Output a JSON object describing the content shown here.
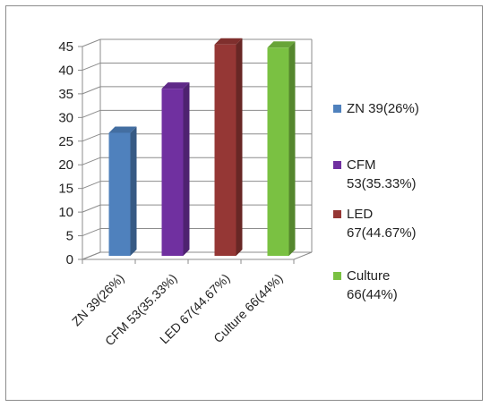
{
  "chart_data": {
    "type": "bar",
    "categories": [
      "ZN 39(26%)",
      "CFM 53(35.33%)",
      "LED 67(44.67%)",
      "Culture 66(44%)"
    ],
    "values": [
      26,
      35.33,
      44.67,
      44
    ],
    "ylim": [
      0,
      45
    ],
    "yticks": [
      "0",
      "5",
      "10",
      "15",
      "20",
      "25",
      "30",
      "35",
      "40",
      "45"
    ],
    "grid": true,
    "legend_position": "right",
    "colors": [
      "#4f81bd",
      "#7030a0",
      "#953735",
      "#7ac142"
    ],
    "legend": [
      {
        "lines": [
          "ZN 39(26%)"
        ]
      },
      {
        "lines": [
          "CFM",
          "53(35.33%)"
        ]
      },
      {
        "lines": [
          "LED",
          "67(44.67%)"
        ]
      },
      {
        "lines": [
          "Culture",
          "66(44%)"
        ]
      }
    ]
  }
}
